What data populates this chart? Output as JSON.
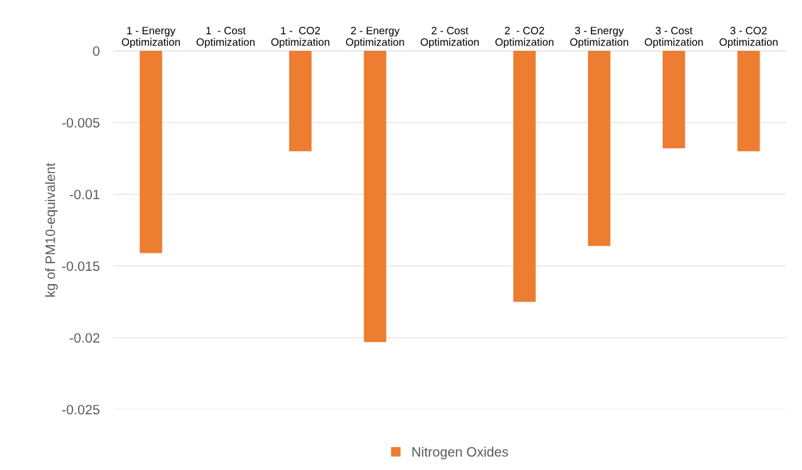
{
  "chart_data": {
    "type": "bar",
    "ylabel": "kg of PM10-equivalent",
    "categories": [
      "1 - Energy\nOptimization",
      "1  - Cost\nOptimization",
      "1 -  CO2\nOptimization",
      "2 - Energy\nOptimization",
      "2 - Cost\nOptimization",
      "2  - CO2\nOptimization",
      "3 - Energy\nOptimization",
      "3 - Cost\nOptimization",
      "3 - CO2\nOptimization"
    ],
    "series": [
      {
        "name": "Nitrogen Oxides",
        "color": "#ed7d31",
        "values": [
          -0.0141,
          0,
          -0.007,
          -0.0203,
          0,
          -0.0175,
          -0.0136,
          -0.0068,
          -0.007
        ]
      }
    ],
    "ylim": [
      -0.025,
      0
    ],
    "yticks": [
      0,
      -0.005,
      -0.01,
      -0.015,
      -0.02,
      -0.025
    ],
    "grid": "y",
    "legend": "bottom"
  }
}
